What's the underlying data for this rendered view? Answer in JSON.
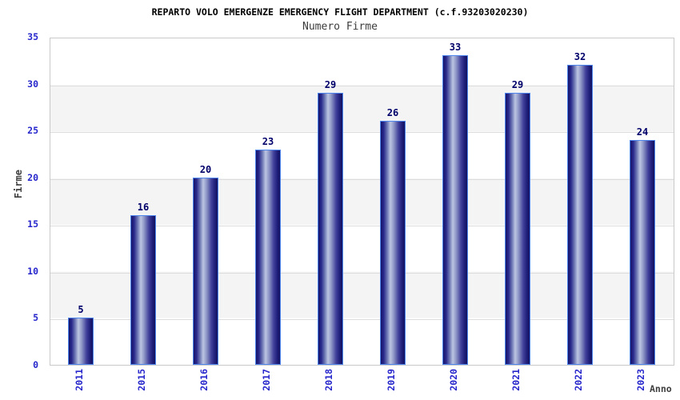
{
  "header": {
    "title": "REPARTO VOLO EMERGENZE EMERGENCY FLIGHT DEPARTMENT (c.f.93203020230)",
    "subtitle": "Numero Firme"
  },
  "chart_data": {
    "type": "bar",
    "title": "REPARTO VOLO EMERGENZE EMERGENCY FLIGHT DEPARTMENT (c.f.93203020230)",
    "subtitle": "Numero Firme",
    "categories": [
      "2011",
      "2015",
      "2016",
      "2017",
      "2018",
      "2019",
      "2020",
      "2021",
      "2022",
      "2023"
    ],
    "values": [
      5,
      16,
      20,
      23,
      29,
      26,
      33,
      29,
      32,
      24
    ],
    "xlabel": "Anno",
    "ylabel": "Firme",
    "ylim": [
      0,
      35
    ],
    "yticks": [
      0,
      5,
      10,
      15,
      20,
      25,
      30,
      35
    ],
    "legend": "none",
    "grid": "alternating horizontal bands every 5 units",
    "bar_labels_shown": true,
    "colors": {
      "bar_gradient_dark": "#15156a",
      "bar_gradient_light": "#bcc5e2",
      "bar_border": "#4f86ee",
      "tick_text": "#2626cc",
      "value_label_text": "#00006a",
      "axis_title_text": "#3f3f3f",
      "band_gray": "#f4f4f4",
      "plot_border": "#c9c9c9",
      "title_text": "#000000",
      "subtitle_text": "#3c3c3c"
    }
  }
}
